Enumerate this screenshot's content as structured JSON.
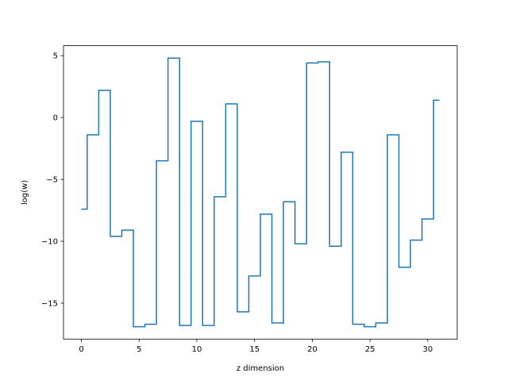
{
  "chart_data": {
    "type": "line",
    "drawstyle": "steps-mid",
    "title": "",
    "xlabel": "z dimension",
    "ylabel": "log(w)",
    "xlim": [
      -1.55,
      32.55
    ],
    "ylim": [
      -17.9,
      5.8
    ],
    "grid": false,
    "color": "#1f77b4",
    "xticks": [
      0,
      5,
      10,
      15,
      20,
      25,
      30
    ],
    "xtick_labels": [
      "0",
      "5",
      "10",
      "15",
      "20",
      "25",
      "30"
    ],
    "yticks": [
      5,
      0,
      -5,
      -10,
      -15
    ],
    "ytick_labels": [
      "5",
      "0",
      "−5",
      "−10",
      "−15"
    ],
    "x": [
      0,
      1,
      2,
      3,
      4,
      5,
      6,
      7,
      8,
      9,
      10,
      11,
      12,
      13,
      14,
      15,
      16,
      17,
      18,
      19,
      20,
      21,
      22,
      23,
      24,
      25,
      26,
      27,
      28,
      29,
      30,
      31
    ],
    "series": [
      {
        "values": [
          -7.4,
          -1.4,
          2.2,
          -9.6,
          -9.1,
          -16.9,
          -16.7,
          -3.5,
          4.8,
          -16.8,
          -0.3,
          -16.8,
          -6.4,
          1.1,
          -15.7,
          -12.8,
          -7.8,
          -16.6,
          -6.8,
          -10.2,
          4.4,
          4.5,
          -10.4,
          -2.8,
          -16.7,
          -16.9,
          -16.6,
          -1.4,
          -12.1,
          -9.9,
          -8.2,
          1.4
        ]
      }
    ]
  }
}
